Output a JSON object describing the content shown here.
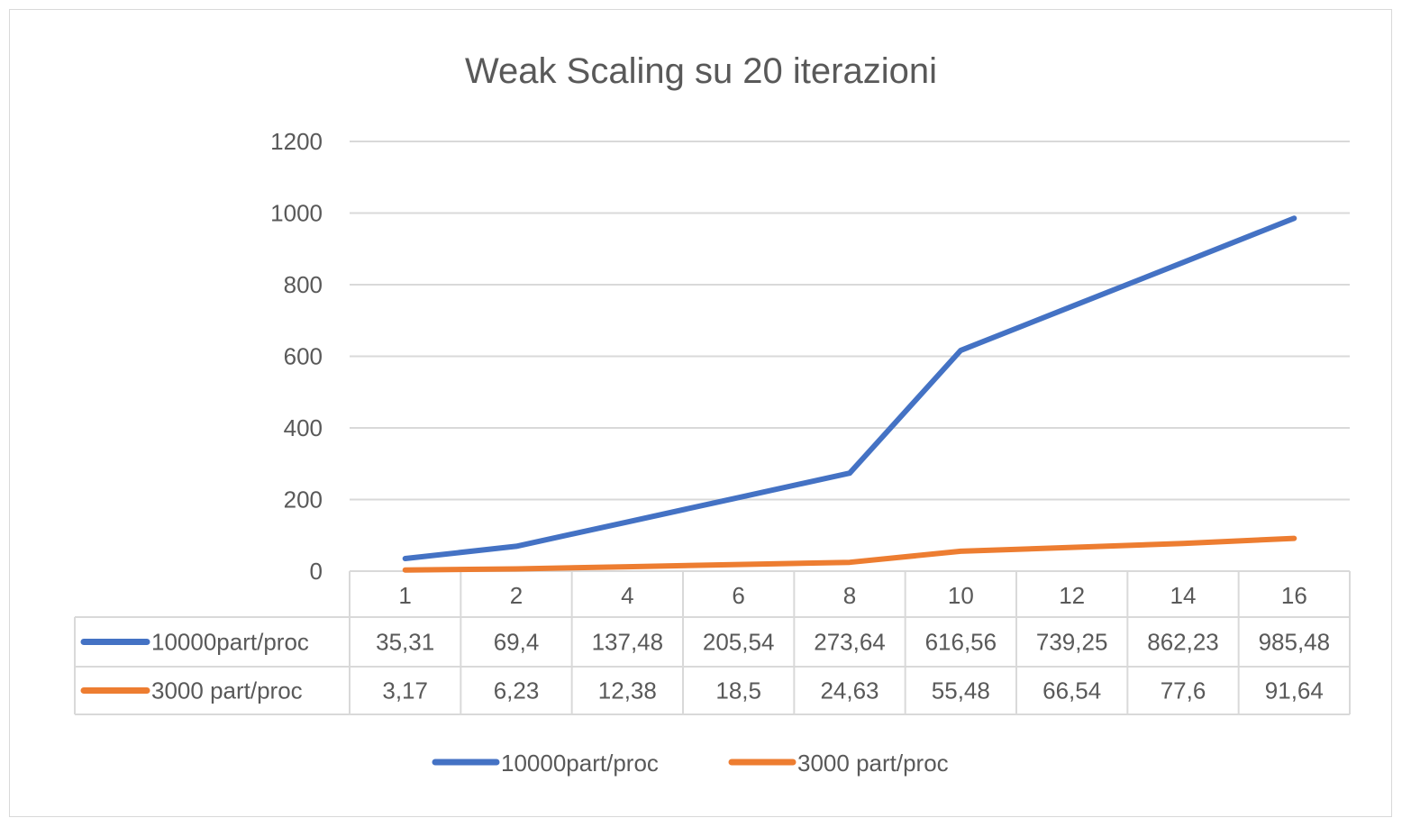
{
  "chart_data": {
    "type": "line",
    "title": "Weak Scaling su 20 iterazioni",
    "categories": [
      "1",
      "2",
      "4",
      "6",
      "8",
      "10",
      "12",
      "14",
      "16"
    ],
    "ylim": [
      0,
      1200
    ],
    "yticks": [
      "0",
      "200",
      "400",
      "600",
      "800",
      "1000",
      "1200"
    ],
    "grid": true,
    "legend_position": "bottom",
    "data_table": true,
    "series": [
      {
        "name": "10000part/proc",
        "color": "#4472c4",
        "values": [
          35.31,
          69.4,
          137.48,
          205.54,
          273.64,
          616.56,
          739.25,
          862.23,
          985.48
        ],
        "labels": [
          "35,31",
          "69,4",
          "137,48",
          "205,54",
          "273,64",
          "616,56",
          "739,25",
          "862,23",
          "985,48"
        ]
      },
      {
        "name": "3000 part/proc",
        "color": "#ed7d31",
        "values": [
          3.17,
          6.23,
          12.38,
          18.5,
          24.63,
          55.48,
          66.54,
          77.6,
          91.64
        ],
        "labels": [
          "3,17",
          "6,23",
          "12,38",
          "18,5",
          "24,63",
          "55,48",
          "66,54",
          "77,6",
          "91,64"
        ]
      }
    ]
  }
}
